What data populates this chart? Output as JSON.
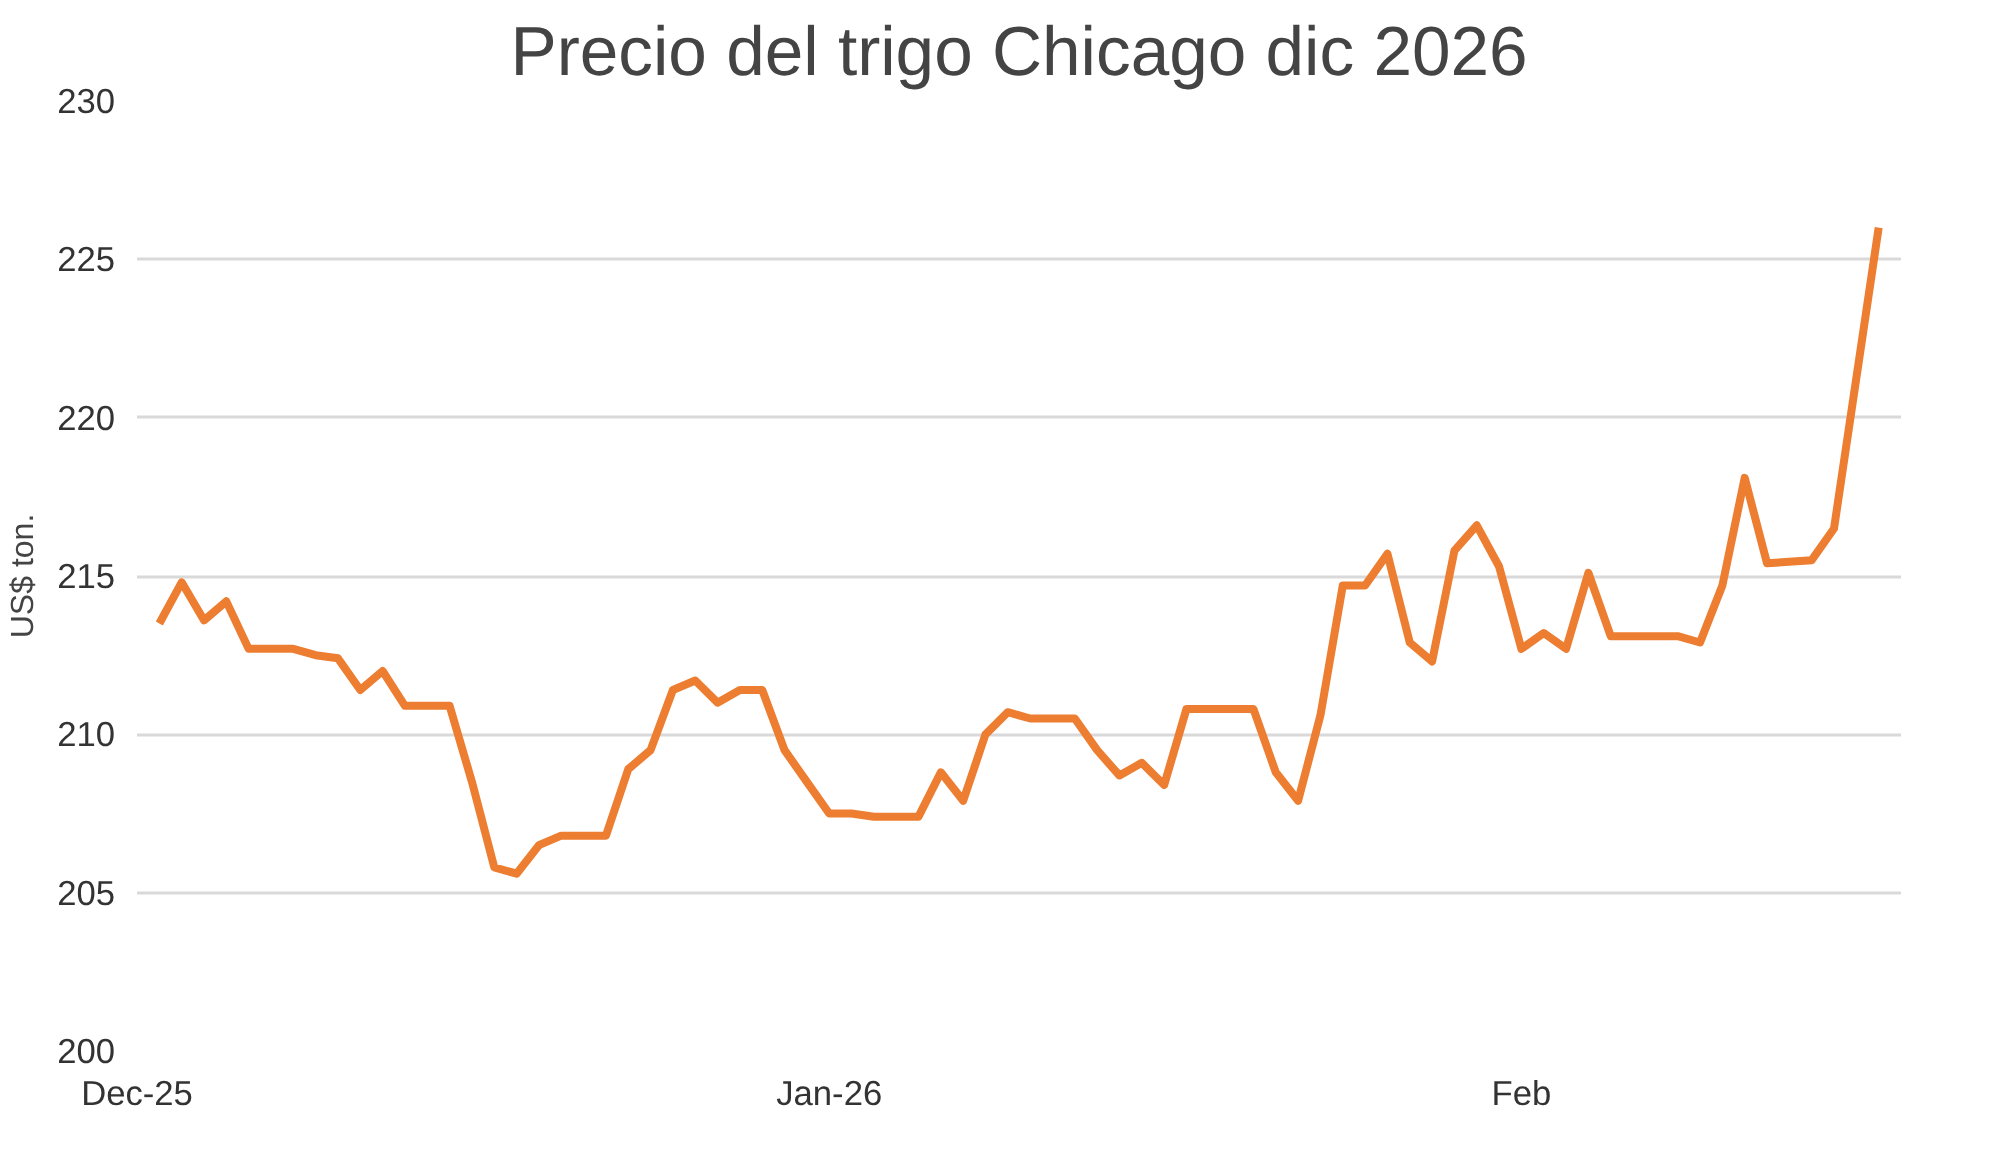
{
  "chart_data": {
    "type": "line",
    "title": "Precio del trigo Chicago dic 2026",
    "ylabel": "US$ ton.",
    "x": [
      "2025-12-02",
      "2025-12-03",
      "2025-12-04",
      "2025-12-05",
      "2025-12-06",
      "2025-12-08",
      "2025-12-09",
      "2025-12-10",
      "2025-12-11",
      "2025-12-12",
      "2025-12-13",
      "2025-12-15",
      "2025-12-16",
      "2025-12-17",
      "2025-12-18",
      "2025-12-19",
      "2025-12-20",
      "2025-12-22",
      "2025-12-23",
      "2025-12-24",
      "2025-12-25",
      "2025-12-26",
      "2025-12-27",
      "2025-12-28",
      "2025-12-29",
      "2025-12-30",
      "2025-12-31",
      "2026-01-01",
      "2026-01-02",
      "2026-01-03",
      "2026-01-05",
      "2026-01-06",
      "2026-01-07",
      "2026-01-08",
      "2026-01-09",
      "2026-01-10",
      "2026-01-12",
      "2026-01-13",
      "2026-01-14",
      "2026-01-15",
      "2026-01-16",
      "2026-01-17",
      "2026-01-20",
      "2026-01-21",
      "2026-01-22",
      "2026-01-23",
      "2026-01-24",
      "2026-01-25",
      "2026-01-26",
      "2026-01-27",
      "2026-01-28",
      "2026-01-29",
      "2026-01-30",
      "2026-01-31",
      "2026-02-01",
      "2026-02-02",
      "2026-02-03",
      "2026-02-04",
      "2026-02-05",
      "2026-02-08",
      "2026-02-09",
      "2026-02-10",
      "2026-02-11",
      "2026-02-12",
      "2026-02-14",
      "2026-02-15",
      "2026-02-17"
    ],
    "series": [
      {
        "color": "#ed7d31",
        "values": [
          213.5,
          214.8,
          213.6,
          214.2,
          212.7,
          212.7,
          212.5,
          212.4,
          211.4,
          212.0,
          210.9,
          210.9,
          208.5,
          205.8,
          205.6,
          206.5,
          206.8,
          206.8,
          208.9,
          209.5,
          211.4,
          211.7,
          211.0,
          211.4,
          211.4,
          209.5,
          208.5,
          207.5,
          207.5,
          207.4,
          207.4,
          208.8,
          207.9,
          210.0,
          210.7,
          210.5,
          210.5,
          209.5,
          208.7,
          209.1,
          208.4,
          210.8,
          210.8,
          208.8,
          207.9,
          210.6,
          214.7,
          214.7,
          215.7,
          212.9,
          212.3,
          215.8,
          216.6,
          215.3,
          212.7,
          213.2,
          212.7,
          215.1,
          213.1,
          213.1,
          212.9,
          214.7,
          218.1,
          215.4,
          215.5,
          216.5,
          226.0
        ]
      }
    ],
    "xlim": [
      "2025-12-01",
      "2026-02-18"
    ],
    "xticks": [
      {
        "value": "2025-12-01",
        "label": "Dec-25"
      },
      {
        "value": "2026-01-01",
        "label": "Jan-26"
      },
      {
        "value": "2026-02-01",
        "label": "Feb"
      }
    ],
    "ylim": [
      200,
      230
    ],
    "yticks": [
      200,
      205,
      210,
      215,
      220,
      225,
      230
    ],
    "grid": "y"
  }
}
